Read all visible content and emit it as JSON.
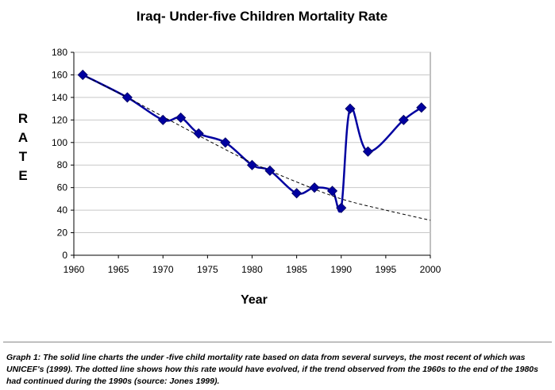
{
  "chart_data": {
    "type": "line",
    "title": "Iraq- Under-five Children Mortality Rate",
    "xlabel": "Year",
    "ylabel": "R\nA\nT\nE",
    "xlim": [
      1960,
      2000
    ],
    "ylim": [
      0,
      180
    ],
    "x_ticks": [
      "1960",
      "1965",
      "1970",
      "1975",
      "1980",
      "1985",
      "1990",
      "1995",
      "2000"
    ],
    "y_ticks": [
      "0",
      "20",
      "40",
      "60",
      "80",
      "100",
      "120",
      "140",
      "160",
      "180"
    ],
    "grid": "horizontal",
    "legend": "none",
    "series": [
      {
        "style": "solid",
        "color": "#0000a0",
        "marker": "diamond",
        "x": [
          1961,
          1966,
          1970,
          1972,
          1974,
          1977,
          1980,
          1982,
          1985,
          1987,
          1989,
          1990,
          1991,
          1993,
          1997,
          1999
        ],
        "y": [
          160,
          140,
          120,
          122,
          108,
          100,
          80,
          75,
          55,
          60,
          57,
          42,
          130,
          92,
          120,
          131
        ]
      },
      {
        "style": "dashed",
        "color": "#000000",
        "marker": "none",
        "x": [
          1961,
          1966,
          1970,
          1975,
          1980,
          1985,
          1990,
          1995,
          2000
        ],
        "y": [
          160,
          140,
          123,
          102,
          82,
          65,
          50,
          40,
          31
        ]
      }
    ]
  },
  "caption": "Graph 1: The solid line charts the under -five child mortality rate based on data from several surveys, the most recent of which was UNICEF's (1999).  The dotted line shows how this rate would have evolved, if the trend observed from the 1960s to the end of the 1980s had continued during the 1990s (source: Jones 1999)."
}
